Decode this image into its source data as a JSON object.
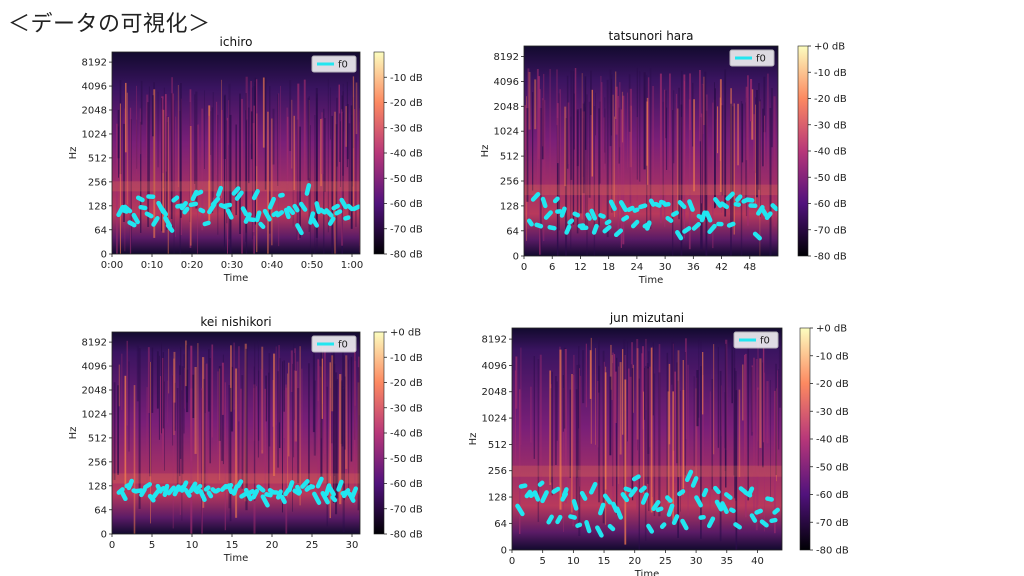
{
  "page": {
    "title": "＜データの可視化＞"
  },
  "colors": {
    "f0": "#22e6f0",
    "spec_low": "#120a2e",
    "spec_mid": "#7a1f78",
    "spec_high": "#f07a4e",
    "spec_peak": "#fbd38c"
  },
  "chart_data": [
    {
      "type": "heatmap",
      "title": "ichiro",
      "xlabel": "Time",
      "ylabel": "Hz",
      "xticks": [
        "0:00",
        "0:10",
        "0:20",
        "0:30",
        "0:40",
        "0:50",
        "1:00"
      ],
      "yticks": [
        "0",
        "64",
        "128",
        "256",
        "512",
        "1024",
        "2048",
        "4096",
        "8192"
      ],
      "colorbar_ticks": [
        "-10 dB",
        "-20 dB",
        "-30 dB",
        "-40 dB",
        "-50 dB",
        "-60 dB",
        "-70 dB",
        "-80 dB"
      ],
      "legend": [
        "f0"
      ],
      "xlim": [
        0,
        62
      ]
    },
    {
      "type": "heatmap",
      "title": "tatsunori hara",
      "xlabel": "Time",
      "ylabel": "Hz",
      "xticks": [
        "0",
        "6",
        "12",
        "18",
        "24",
        "30",
        "36",
        "42",
        "48"
      ],
      "yticks": [
        "0",
        "64",
        "128",
        "256",
        "512",
        "1024",
        "2048",
        "4096",
        "8192"
      ],
      "colorbar_ticks": [
        "+0 dB",
        "-10 dB",
        "-20 dB",
        "-30 dB",
        "-40 dB",
        "-50 dB",
        "-60 dB",
        "-70 dB",
        "-80 dB"
      ],
      "legend": [
        "f0"
      ],
      "xlim": [
        0,
        54
      ]
    },
    {
      "type": "heatmap",
      "title": "kei nishikori",
      "xlabel": "Time",
      "ylabel": "Hz",
      "xticks": [
        "0",
        "5",
        "10",
        "15",
        "20",
        "25",
        "30"
      ],
      "yticks": [
        "0",
        "64",
        "128",
        "256",
        "512",
        "1024",
        "2048",
        "4096",
        "8192"
      ],
      "colorbar_ticks": [
        "+0 dB",
        "-10 dB",
        "-20 dB",
        "-30 dB",
        "-40 dB",
        "-50 dB",
        "-60 dB",
        "-70 dB",
        "-80 dB"
      ],
      "legend": [
        "f0"
      ],
      "xlim": [
        0,
        31
      ]
    },
    {
      "type": "heatmap",
      "title": "jun mizutani",
      "xlabel": "Time",
      "ylabel": "Hz",
      "xticks": [
        "0",
        "5",
        "10",
        "15",
        "20",
        "25",
        "30",
        "35",
        "40"
      ],
      "yticks": [
        "0",
        "64",
        "128",
        "256",
        "512",
        "1024",
        "2048",
        "4096",
        "8192"
      ],
      "colorbar_ticks": [
        "+0 dB",
        "-10 dB",
        "-20 dB",
        "-30 dB",
        "-40 dB",
        "-50 dB",
        "-60 dB",
        "-70 dB",
        "-80 dB"
      ],
      "legend": [
        "f0"
      ],
      "xlim": [
        0,
        44
      ]
    }
  ]
}
